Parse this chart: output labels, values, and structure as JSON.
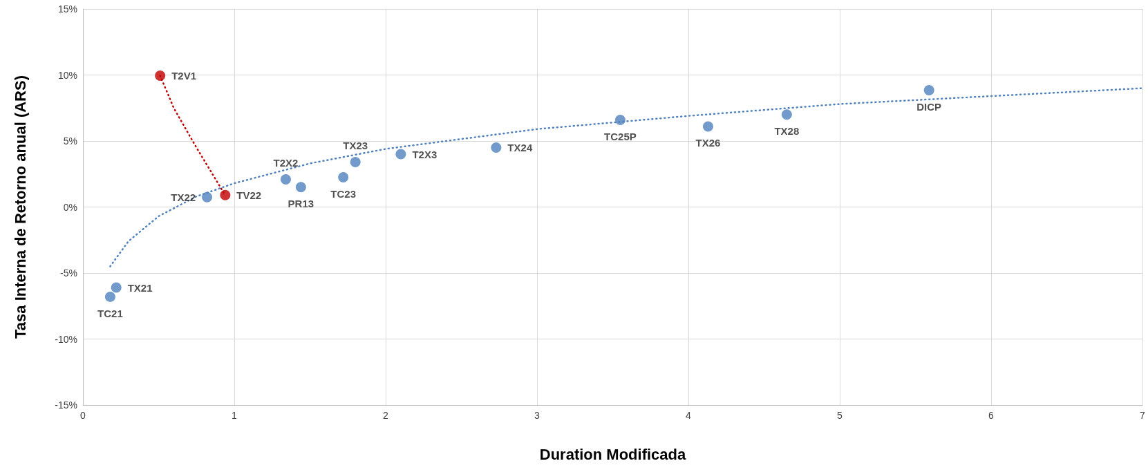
{
  "chart_data": {
    "type": "scatter",
    "xlabel": "Duration Modificada",
    "ylabel": "Tasa Interna de Retorno anual (ARS)",
    "xlim": [
      0,
      7
    ],
    "xticks": [
      0,
      1,
      2,
      3,
      4,
      5,
      6,
      7
    ],
    "ylim": [
      -15,
      15
    ],
    "yticks": [
      {
        "value": -15,
        "label": "-15%"
      },
      {
        "value": -10,
        "label": "-10%"
      },
      {
        "value": -5,
        "label": "-5%"
      },
      {
        "value": 0,
        "label": "0%"
      },
      {
        "value": 5,
        "label": "5%"
      },
      {
        "value": 10,
        "label": "10%"
      },
      {
        "value": 15,
        "label": "15%"
      }
    ],
    "grid": true,
    "legend": false,
    "marker": "circle",
    "series": [
      {
        "type": "line",
        "color": "#4f81bd",
        "line_style": "dotted",
        "marker": "none",
        "x": [
          0.18,
          0.3,
          0.5,
          0.75,
          1,
          1.5,
          2,
          3,
          4,
          5,
          6,
          7
        ],
        "values": [
          -4.5,
          -2.6,
          -0.7,
          0.8,
          1.8,
          3.3,
          4.4,
          5.9,
          6.9,
          7.8,
          8.4,
          9.0
        ]
      },
      {
        "type": "line",
        "color": "#c00000",
        "line_style": "dotted",
        "marker": "none",
        "x": [
          0.51,
          0.6,
          0.75,
          0.94
        ],
        "values": [
          9.95,
          7.5,
          4.5,
          0.9
        ]
      },
      {
        "type": "scatter",
        "color": "#4f81bd",
        "x": [
          0.18,
          0.22,
          0.82,
          1.34,
          1.44,
          1.72,
          1.8,
          2.1,
          2.73,
          3.55,
          4.13,
          4.65,
          5.59
        ],
        "values": [
          -6.8,
          -6.1,
          0.75,
          2.1,
          1.5,
          2.25,
          3.4,
          4.0,
          4.5,
          6.6,
          6.1,
          7.0,
          8.85
        ],
        "value_labels": [
          "TC21",
          "TX21",
          "TX22",
          "T2X2",
          "PR13",
          "TC23",
          "TX23",
          "T2X3",
          "TX24",
          "TC25P",
          "TX26",
          "TX28",
          "DICP"
        ]
      },
      {
        "type": "scatter",
        "color": "#c00000",
        "x": [
          0.51,
          0.94
        ],
        "values": [
          9.95,
          0.9
        ],
        "value_labels": [
          "T2V1",
          "TV22"
        ]
      }
    ]
  }
}
